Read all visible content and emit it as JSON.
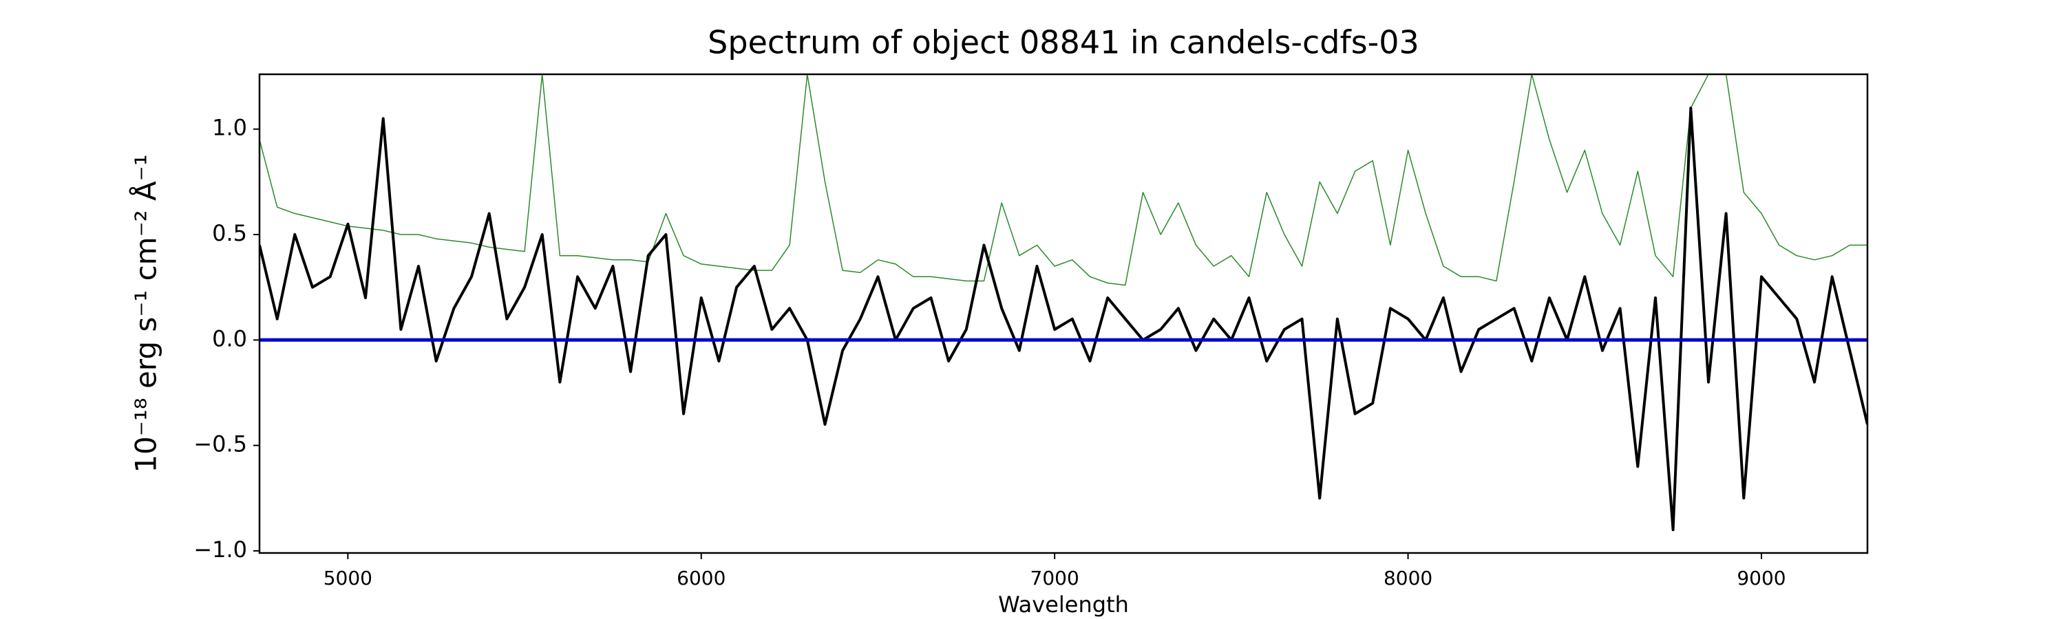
{
  "chart_data": {
    "type": "line",
    "title": "Spectrum of object 08841 in candels-cdfs-03",
    "xlabel": "Wavelength",
    "ylabel": "10⁻¹⁸ erg s⁻¹ cm⁻² Å⁻¹",
    "x": [
      4750,
      4800,
      4850,
      4900,
      4950,
      5000,
      5050,
      5100,
      5150,
      5200,
      5250,
      5300,
      5350,
      5400,
      5450,
      5500,
      5550,
      5600,
      5650,
      5700,
      5750,
      5800,
      5850,
      5900,
      5950,
      6000,
      6050,
      6100,
      6150,
      6200,
      6250,
      6300,
      6350,
      6400,
      6450,
      6500,
      6550,
      6600,
      6650,
      6700,
      6750,
      6800,
      6850,
      6900,
      6950,
      7000,
      7050,
      7100,
      7150,
      7200,
      7250,
      7300,
      7350,
      7400,
      7450,
      7500,
      7550,
      7600,
      7650,
      7700,
      7750,
      7800,
      7850,
      7900,
      7950,
      8000,
      8050,
      8100,
      8150,
      8200,
      8250,
      8300,
      8350,
      8400,
      8450,
      8500,
      8550,
      8600,
      8650,
      8700,
      8750,
      8800,
      8850,
      8900,
      8950,
      9000,
      9050,
      9100,
      9150,
      9200,
      9250,
      9300
    ],
    "series": [
      {
        "color": "#2a8a2a",
        "width": 1.5,
        "values": [
          0.95,
          0.63,
          0.6,
          0.58,
          0.56,
          0.54,
          0.53,
          0.52,
          0.5,
          0.5,
          0.48,
          0.47,
          0.46,
          0.44,
          0.43,
          0.42,
          1.26,
          0.4,
          0.4,
          0.39,
          0.38,
          0.38,
          0.37,
          0.6,
          0.4,
          0.36,
          0.35,
          0.34,
          0.33,
          0.33,
          0.45,
          1.26,
          0.75,
          0.33,
          0.32,
          0.38,
          0.36,
          0.3,
          0.3,
          0.29,
          0.28,
          0.28,
          0.65,
          0.4,
          0.45,
          0.35,
          0.38,
          0.3,
          0.27,
          0.26,
          0.7,
          0.5,
          0.65,
          0.45,
          0.35,
          0.4,
          0.3,
          0.7,
          0.5,
          0.35,
          0.75,
          0.6,
          0.8,
          0.85,
          0.45,
          0.9,
          0.6,
          0.35,
          0.3,
          0.3,
          0.28,
          0.75,
          1.26,
          0.95,
          0.7,
          0.9,
          0.6,
          0.45,
          0.8,
          0.4,
          0.3,
          1.1,
          1.26,
          1.26,
          0.7,
          0.6,
          0.45,
          0.4,
          0.38,
          0.4,
          0.45,
          0.45
        ]
      },
      {
        "color": "#000000",
        "width": 4,
        "values": [
          0.45,
          0.1,
          0.5,
          0.25,
          0.3,
          0.55,
          0.2,
          1.05,
          0.05,
          0.35,
          -0.1,
          0.15,
          0.3,
          0.6,
          0.1,
          0.25,
          0.5,
          -0.2,
          0.3,
          0.15,
          0.35,
          -0.15,
          0.4,
          0.5,
          -0.35,
          0.2,
          -0.1,
          0.25,
          0.35,
          0.05,
          0.15,
          0.0,
          -0.4,
          -0.05,
          0.1,
          0.3,
          0.0,
          0.15,
          0.2,
          -0.1,
          0.05,
          0.45,
          0.15,
          -0.05,
          0.35,
          0.05,
          0.1,
          -0.1,
          0.2,
          0.1,
          0.0,
          0.05,
          0.15,
          -0.05,
          0.1,
          0.0,
          0.2,
          -0.1,
          0.05,
          0.1,
          -0.75,
          0.1,
          -0.35,
          -0.3,
          0.15,
          0.1,
          0.0,
          0.2,
          -0.15,
          0.05,
          0.1,
          0.15,
          -0.1,
          0.2,
          0.0,
          0.3,
          -0.05,
          0.15,
          -0.6,
          0.2,
          -0.9,
          1.1,
          -0.2,
          0.6,
          -0.75,
          0.3,
          0.2,
          0.1,
          -0.2,
          0.3,
          -0.05,
          -0.4
        ]
      },
      {
        "color": "#0000cc",
        "width": 5,
        "x": [
          4750,
          9300
        ],
        "values": [
          0,
          0
        ]
      }
    ],
    "xlim": [
      4750,
      9300
    ],
    "ylim": [
      -1.01,
      1.26
    ],
    "xticks": [
      5000,
      6000,
      7000,
      8000,
      9000
    ],
    "yticks": [
      {
        "value": -1,
        "label": "−1.0"
      },
      {
        "value": -0.5,
        "label": "−0.5"
      },
      {
        "value": 0,
        "label": "0.0"
      },
      0.5,
      {
        "value": 1,
        "label": "1.0"
      }
    ]
  }
}
